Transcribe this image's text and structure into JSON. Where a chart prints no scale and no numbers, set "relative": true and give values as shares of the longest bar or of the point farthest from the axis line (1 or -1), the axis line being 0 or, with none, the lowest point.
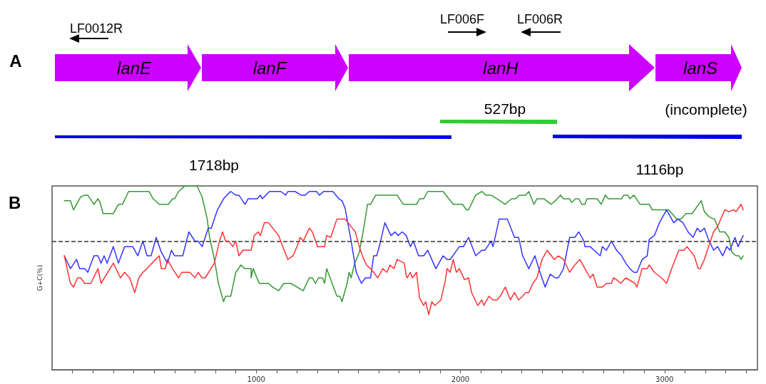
{
  "chart_data": [
    {
      "type": "other",
      "annotations": [
        "A",
        "LF0012R",
        "LF006F",
        "LF006R",
        "lanE",
        "lanF",
        "lanH",
        "lanS",
        "527bp",
        "(incomplete)",
        "1718bp",
        "1116bp"
      ]
    },
    {
      "type": "line",
      "relative": true,
      "ylabel": "G+C(%)",
      "annotations": [
        "B"
      ],
      "marker": "none",
      "xlim": [
        0,
        3455
      ],
      "xticks": [
        {
          "value": 100,
          "label": null
        },
        {
          "value": 200,
          "label": null
        },
        {
          "value": 300,
          "label": null
        },
        {
          "value": 400,
          "label": null
        },
        {
          "value": 500,
          "label": null
        },
        {
          "value": 600,
          "label": null
        },
        {
          "value": 700,
          "label": null
        },
        {
          "value": 800,
          "label": null
        },
        {
          "value": 900,
          "label": null
        },
        1000,
        {
          "value": 1100,
          "label": null
        },
        {
          "value": 1200,
          "label": null
        },
        {
          "value": 1300,
          "label": null
        },
        {
          "value": 1400,
          "label": null
        },
        {
          "value": 1500,
          "label": null
        },
        {
          "value": 1600,
          "label": null
        },
        {
          "value": 1700,
          "label": null
        },
        {
          "value": 1800,
          "label": null
        },
        {
          "value": 1900,
          "label": null
        },
        2000,
        {
          "value": 2100,
          "label": null
        },
        {
          "value": 2200,
          "label": null
        },
        {
          "value": 2300,
          "label": null
        },
        {
          "value": 2400,
          "label": null
        },
        {
          "value": 2500,
          "label": null
        },
        {
          "value": 2600,
          "label": null
        },
        {
          "value": 2700,
          "label": null
        },
        {
          "value": 2800,
          "label": null
        },
        {
          "value": 2900,
          "label": null
        },
        3000,
        {
          "value": 3100,
          "label": null
        },
        {
          "value": 3200,
          "label": null
        },
        {
          "value": 3300,
          "label": null
        },
        {
          "value": 3400,
          "label": null
        }
      ],
      "ref_lines": [
        {
          "axis": "y",
          "value": 0.7,
          "color": "#333333",
          "line_style": "dashed"
        }
      ],
      "series": [
        {
          "color": "#339933",
          "x": [
            60,
            90,
            105,
            140,
            160,
            175,
            205,
            225,
            235,
            250,
            300,
            325,
            345,
            375,
            475,
            495,
            525,
            570,
            590,
            600,
            620,
            640,
            650,
            710,
            735,
            760,
            770,
            795,
            815,
            840,
            850,
            865,
            875,
            900,
            925,
            945,
            975,
            975,
            985,
            1015,
            1060,
            1080,
            1110,
            1135,
            1170,
            1230,
            1260,
            1275,
            1290,
            1305,
            1325,
            1335,
            1345,
            1395,
            1410,
            1420,
            1445,
            1455,
            1465,
            1480,
            1505,
            1525,
            1545,
            1560,
            1585,
            1690,
            1720,
            1735,
            1785,
            1800,
            1820,
            1840,
            1915,
            1965,
            2010,
            2030,
            2040,
            2075,
            2105,
            2125,
            2150,
            2180,
            2220,
            2250,
            2270,
            2290,
            2320,
            2335,
            2360,
            2375,
            2410,
            2445,
            2465,
            2490,
            2505,
            2535,
            2545,
            2565,
            2580,
            2595,
            2610,
            2620,
            2670,
            2690,
            2710,
            2725,
            2790,
            2800,
            2820,
            2830,
            2850,
            2880,
            2925,
            2940,
            3020,
            3060,
            3080,
            3105,
            3135,
            3180,
            3195,
            3220,
            3245,
            3270,
            3295,
            3315,
            3330,
            3350,
            3365,
            3375,
            3385
          ],
          "values": [
            0.92,
            0.92,
            0.87,
            0.94,
            0.95,
            0.95,
            0.9,
            0.93,
            0.91,
            0.85,
            0.85,
            0.9,
            0.9,
            0.97,
            0.97,
            0.93,
            0.9,
            0.9,
            0.93,
            0.93,
            0.97,
            0.99,
            1.0,
            1.0,
            0.94,
            0.82,
            0.73,
            0.6,
            0.47,
            0.37,
            0.4,
            0.4,
            0.4,
            0.53,
            0.57,
            0.55,
            0.55,
            0.5,
            0.55,
            0.47,
            0.47,
            0.45,
            0.43,
            0.47,
            0.47,
            0.43,
            0.5,
            0.5,
            0.47,
            0.5,
            0.5,
            0.47,
            0.55,
            0.4,
            0.4,
            0.37,
            0.47,
            0.53,
            0.5,
            0.57,
            0.64,
            0.76,
            0.9,
            0.9,
            0.95,
            0.95,
            0.9,
            0.9,
            0.9,
            0.93,
            0.93,
            0.97,
            0.97,
            0.9,
            0.9,
            0.87,
            0.87,
            0.95,
            0.97,
            0.95,
            0.95,
            0.93,
            0.9,
            0.93,
            0.93,
            0.95,
            0.95,
            0.97,
            0.9,
            0.93,
            0.93,
            0.9,
            0.92,
            0.95,
            0.93,
            0.93,
            0.91,
            0.93,
            0.93,
            0.9,
            0.9,
            0.93,
            0.93,
            0.9,
            0.95,
            0.93,
            0.93,
            0.95,
            0.95,
            0.93,
            0.95,
            0.9,
            0.9,
            0.87,
            0.87,
            0.82,
            0.82,
            0.85,
            0.85,
            0.92,
            0.86,
            0.83,
            0.82,
            0.75,
            0.75,
            0.72,
            0.64,
            0.62,
            0.62,
            0.6,
            0.62
          ]
        },
        {
          "color": "#3333ff",
          "x": [
            60,
            90,
            120,
            135,
            160,
            175,
            205,
            225,
            240,
            255,
            270,
            300,
            325,
            355,
            395,
            420,
            445,
            465,
            485,
            510,
            535,
            565,
            585,
            600,
            640,
            670,
            700,
            715,
            735,
            765,
            780,
            810,
            840,
            865,
            875,
            900,
            915,
            945,
            960,
            1005,
            1020,
            1030,
            1065,
            1120,
            1145,
            1155,
            1190,
            1220,
            1240,
            1260,
            1295,
            1310,
            1330,
            1375,
            1405,
            1420,
            1435,
            1465,
            1490,
            1515,
            1535,
            1560,
            1575,
            1590,
            1605,
            1630,
            1660,
            1680,
            1695,
            1715,
            1735,
            1755,
            1770,
            1795,
            1820,
            1840,
            1880,
            1915,
            1935,
            1950,
            1995,
            2015,
            2040,
            2075,
            2105,
            2120,
            2150,
            2160,
            2190,
            2230,
            2265,
            2285,
            2305,
            2335,
            2365,
            2390,
            2415,
            2440,
            2465,
            2480,
            2505,
            2535,
            2560,
            2580,
            2605,
            2610,
            2635,
            2655,
            2685,
            2695,
            2715,
            2740,
            2765,
            2790,
            2810,
            2830,
            2850,
            2865,
            2890,
            2915,
            2925,
            2950,
            2975,
            3010,
            3045,
            3065,
            3090,
            3115,
            3140,
            3160,
            3175,
            3195,
            3215,
            3240,
            3260,
            3285,
            3305,
            3320,
            3345,
            3360,
            3385
          ],
          "values": [
            0.62,
            0.55,
            0.6,
            0.55,
            0.55,
            0.53,
            0.62,
            0.62,
            0.58,
            0.62,
            0.58,
            0.67,
            0.58,
            0.67,
            0.67,
            0.62,
            0.7,
            0.62,
            0.62,
            0.72,
            0.64,
            0.58,
            0.65,
            0.62,
            0.62,
            0.75,
            0.7,
            0.7,
            0.67,
            0.77,
            0.77,
            0.87,
            0.93,
            0.96,
            0.97,
            0.95,
            0.95,
            0.9,
            0.93,
            0.93,
            0.95,
            0.93,
            0.97,
            0.97,
            0.95,
            0.97,
            0.97,
            0.95,
            0.95,
            0.97,
            0.97,
            0.95,
            0.97,
            0.97,
            0.93,
            0.92,
            0.88,
            0.7,
            0.53,
            0.47,
            0.5,
            0.5,
            0.62,
            0.62,
            0.68,
            0.8,
            0.73,
            0.75,
            0.73,
            0.75,
            0.73,
            0.67,
            0.7,
            0.62,
            0.62,
            0.65,
            0.55,
            0.62,
            0.6,
            0.6,
            0.67,
            0.67,
            0.72,
            0.62,
            0.65,
            0.65,
            0.7,
            0.67,
            0.82,
            0.82,
            0.72,
            0.72,
            0.62,
            0.55,
            0.62,
            0.53,
            0.45,
            0.52,
            0.5,
            0.5,
            0.55,
            0.72,
            0.72,
            0.75,
            0.7,
            0.67,
            0.67,
            0.65,
            0.62,
            0.67,
            0.65,
            0.7,
            0.65,
            0.62,
            0.58,
            0.55,
            0.53,
            0.53,
            0.6,
            0.62,
            0.71,
            0.73,
            0.8,
            0.87,
            0.8,
            0.82,
            0.8,
            0.75,
            0.72,
            0.77,
            0.75,
            0.77,
            0.71,
            0.65,
            0.67,
            0.62,
            0.67,
            0.65,
            0.72,
            0.67,
            0.73
          ]
        },
        {
          "color": "#ff3333",
          "x": [
            60,
            90,
            105,
            125,
            140,
            160,
            190,
            225,
            240,
            300,
            335,
            355,
            380,
            405,
            425,
            445,
            465,
            490,
            525,
            535,
            555,
            565,
            590,
            620,
            635,
            675,
            700,
            715,
            735,
            750,
            795,
            820,
            835,
            850,
            865,
            885,
            900,
            915,
            935,
            975,
            990,
            1010,
            1020,
            1040,
            1060,
            1110,
            1130,
            1155,
            1180,
            1200,
            1215,
            1230,
            1260,
            1275,
            1300,
            1335,
            1345,
            1365,
            1395,
            1435,
            1450,
            1485,
            1505,
            1520,
            1540,
            1560,
            1575,
            1595,
            1620,
            1640,
            1655,
            1675,
            1690,
            1725,
            1735,
            1740,
            1755,
            1765,
            1785,
            1800,
            1820,
            1830,
            1845,
            1860,
            1875,
            1905,
            1925,
            1935,
            1950,
            1965,
            1980,
            1995,
            2020,
            2040,
            2055,
            2085,
            2105,
            2115,
            2140,
            2160,
            2180,
            2195,
            2220,
            2245,
            2265,
            2285,
            2305,
            2320,
            2335,
            2355,
            2375,
            2400,
            2425,
            2460,
            2480,
            2505,
            2535,
            2560,
            2585,
            2610,
            2635,
            2650,
            2670,
            2695,
            2715,
            2740,
            2750,
            2765,
            2785,
            2810,
            2855,
            2865,
            2890,
            2915,
            2925,
            2950,
            2985,
            3010,
            3035,
            3070,
            3095,
            3110,
            3145,
            3165,
            3175,
            3195,
            3210,
            3240,
            3260,
            3295,
            3315,
            3340,
            3350,
            3375,
            3385
          ],
          "values": [
            0.62,
            0.47,
            0.45,
            0.5,
            0.5,
            0.47,
            0.47,
            0.55,
            0.47,
            0.58,
            0.5,
            0.53,
            0.5,
            0.42,
            0.5,
            0.53,
            0.55,
            0.58,
            0.62,
            0.55,
            0.55,
            0.6,
            0.55,
            0.5,
            0.53,
            0.53,
            0.5,
            0.53,
            0.5,
            0.5,
            0.58,
            0.7,
            0.75,
            0.7,
            0.7,
            0.67,
            0.7,
            0.62,
            0.65,
            0.65,
            0.73,
            0.75,
            0.73,
            0.8,
            0.8,
            0.73,
            0.67,
            0.6,
            0.62,
            0.67,
            0.72,
            0.7,
            0.77,
            0.75,
            0.67,
            0.67,
            0.73,
            0.72,
            0.82,
            0.82,
            0.8,
            0.75,
            0.67,
            0.62,
            0.57,
            0.55,
            0.53,
            0.5,
            0.55,
            0.53,
            0.57,
            0.55,
            0.6,
            0.58,
            0.51,
            0.5,
            0.53,
            0.5,
            0.53,
            0.39,
            0.35,
            0.37,
            0.3,
            0.37,
            0.35,
            0.38,
            0.48,
            0.55,
            0.53,
            0.6,
            0.53,
            0.55,
            0.49,
            0.5,
            0.42,
            0.35,
            0.38,
            0.35,
            0.4,
            0.38,
            0.38,
            0.4,
            0.45,
            0.38,
            0.42,
            0.38,
            0.4,
            0.42,
            0.42,
            0.47,
            0.5,
            0.6,
            0.65,
            0.6,
            0.62,
            0.6,
            0.53,
            0.57,
            0.6,
            0.55,
            0.5,
            0.52,
            0.45,
            0.45,
            0.47,
            0.47,
            0.5,
            0.49,
            0.47,
            0.5,
            0.47,
            0.45,
            0.55,
            0.55,
            0.57,
            0.53,
            0.5,
            0.47,
            0.55,
            0.65,
            0.65,
            0.67,
            0.62,
            0.55,
            0.55,
            0.6,
            0.65,
            0.75,
            0.78,
            0.87,
            0.86,
            0.87,
            0.86,
            0.9,
            0.87
          ]
        }
      ]
    }
  ]
}
